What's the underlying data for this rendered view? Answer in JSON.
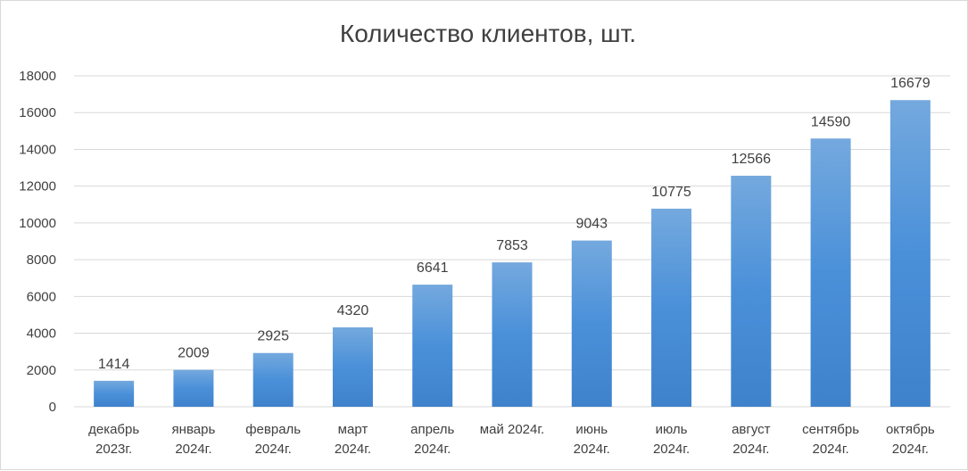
{
  "chart_data": {
    "type": "bar",
    "title": "Количество клиентов, шт.",
    "xlabel": "",
    "ylabel": "",
    "ylim": [
      0,
      18000
    ],
    "yticks": [
      0,
      2000,
      4000,
      6000,
      8000,
      10000,
      12000,
      14000,
      16000,
      18000
    ],
    "grid": true,
    "legend": "none",
    "categories": [
      [
        "декабрь",
        "2023г."
      ],
      [
        "январь",
        "2024г."
      ],
      [
        "февраль",
        "2024г."
      ],
      [
        "март",
        "2024г."
      ],
      [
        "апрель",
        "2024г."
      ],
      [
        "май 2024г."
      ],
      [
        "июнь",
        "2024г."
      ],
      [
        "июль",
        "2024г."
      ],
      [
        "август",
        "2024г."
      ],
      [
        "сентябрь",
        "2024г."
      ],
      [
        "октябрь",
        "2024г."
      ]
    ],
    "values": [
      1414,
      2009,
      2925,
      4320,
      6641,
      7853,
      9043,
      10775,
      12566,
      14590,
      16679
    ],
    "colors": {
      "bar_top": "#74a9de",
      "bar_mid": "#4a90d9",
      "bar_bottom": "#3f82cc",
      "grid": "#d9d9d9",
      "text": "#404040"
    }
  }
}
